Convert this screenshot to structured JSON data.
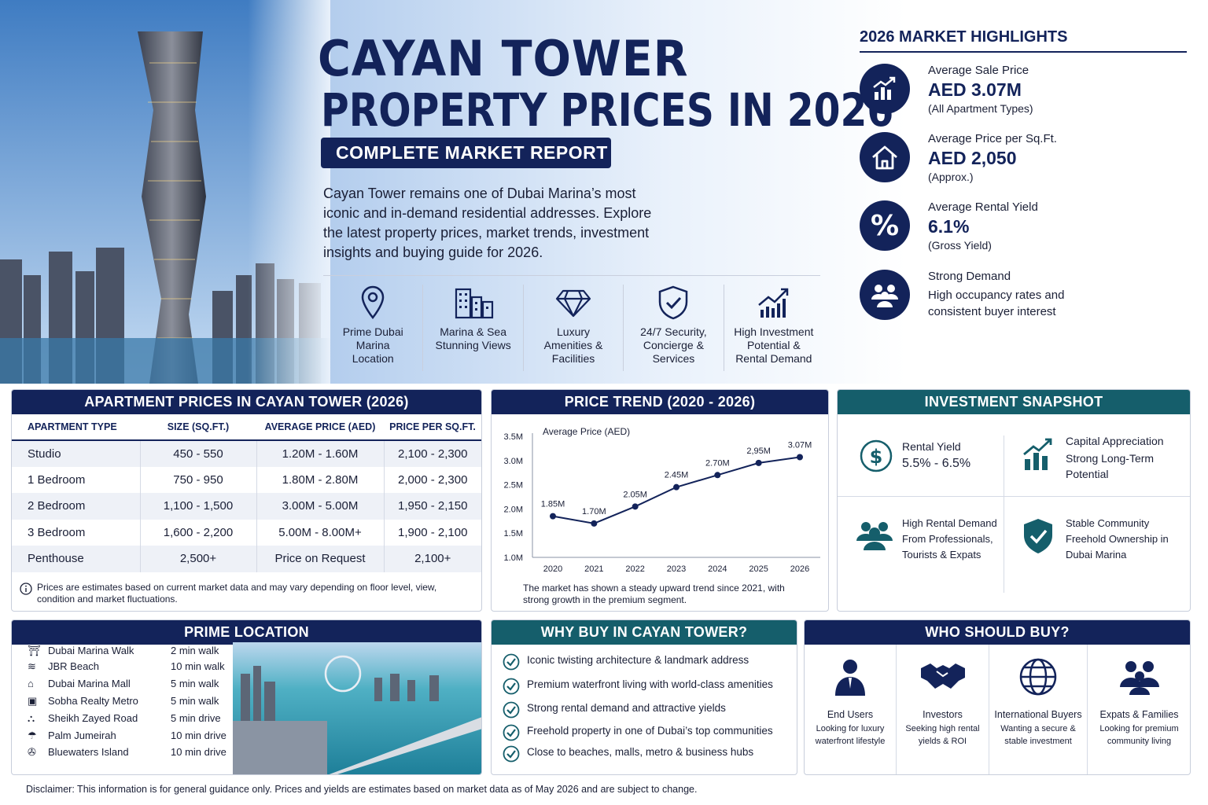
{
  "header": {
    "title_line1": "CAYAN TOWER",
    "title_line2": "PROPERTY PRICES IN 2026",
    "subtitle": "COMPLETE MARKET REPORT",
    "intro": "Cayan Tower remains one of Dubai Marina’s most iconic and in-demand residential addresses. Explore the latest property prices, market trends, investment insights and buying guide for 2026."
  },
  "features": [
    {
      "label": "Prime Dubai Marina Location",
      "icon": "location-pin-icon"
    },
    {
      "label": "Marina & Sea Stunning Views",
      "icon": "buildings-icon"
    },
    {
      "label": "Luxury Amenities & Facilities",
      "icon": "diamond-icon"
    },
    {
      "label": "24/7 Security, Concierge & Services",
      "icon": "shield-check-icon"
    },
    {
      "label": "High Investment Potential & Rental Demand",
      "icon": "growth-chart-icon"
    }
  ],
  "highlights": {
    "title": "2026 MARKET HIGHLIGHTS",
    "items": [
      {
        "label": "Average Sale Price",
        "value": "AED 3.07M",
        "note": "(All Apartment Types)",
        "icon": "chart-up-icon"
      },
      {
        "label": "Average Price per Sq.Ft.",
        "value": "AED 2,050",
        "note": "(Approx.)",
        "icon": "house-icon"
      },
      {
        "label": "Average Rental Yield",
        "value": "6.1%",
        "note": "(Gross Yield)",
        "icon": "percent-icon"
      },
      {
        "label": "Strong Demand",
        "value": "",
        "note": "High occupancy rates and consistent buyer interest",
        "icon": "people-icon"
      }
    ]
  },
  "prices": {
    "title": "APARTMENT PRICES IN CAYAN TOWER (2026)",
    "headers": [
      "APARTMENT TYPE",
      "SIZE (SQ.FT.)",
      "AVERAGE PRICE (AED)",
      "PRICE PER SQ.FT."
    ],
    "rows": [
      [
        "Studio",
        "450 - 550",
        "1.20M - 1.60M",
        "2,100 - 2,300"
      ],
      [
        "1 Bedroom",
        "750 - 950",
        "1.80M - 2.80M",
        "2,000 - 2,300"
      ],
      [
        "2 Bedroom",
        "1,100 - 1,500",
        "3.00M - 5.00M",
        "1,950 - 2,150"
      ],
      [
        "3 Bedroom",
        "1,600 - 2,200",
        "5.00M - 8.00M+",
        "1,900 - 2,100"
      ],
      [
        "Penthouse",
        "2,500+",
        "Price on Request",
        "2,100+"
      ]
    ],
    "note": "Prices are estimates based on current market data and may vary depending on floor level, view, condition and market fluctuations."
  },
  "trend": {
    "title": "PRICE TREND (2020 - 2026)",
    "note": "The market has shown a steady upward trend since 2021, with strong growth in the premium segment."
  },
  "chart_data": {
    "type": "line",
    "title": "",
    "ylabel": "Average Price (AED)",
    "xlabel": "",
    "x": [
      "2020",
      "2021",
      "2022",
      "2023",
      "2024",
      "2025",
      "2026"
    ],
    "y_ticks": [
      "1.0M",
      "1.5M",
      "2.0M",
      "2.5M",
      "3.0M",
      "3.5M"
    ],
    "ylim": [
      1.0,
      3.5
    ],
    "series": [
      {
        "values": [
          1.85,
          1.7,
          2.05,
          2.45,
          2.7,
          2.95,
          3.07
        ],
        "labels": [
          "1.85M",
          "1.70M",
          "2.05M",
          "2.45M",
          "2.70M",
          "2,95M",
          "3.07M"
        ]
      }
    ],
    "grid": false,
    "color": "#13235a"
  },
  "snapshot": {
    "title": "INVESTMENT SNAPSHOT",
    "items": [
      {
        "line1": "Rental Yield",
        "line2": "5.5% - 6.5%",
        "icon": "dollar-icon"
      },
      {
        "line1": "Capital Appreciation",
        "line2": "Strong Long-Term Potential",
        "icon": "bar-growth-icon"
      },
      {
        "line1": "High Rental Demand",
        "line2": "From Professionals, Tourists & Expats",
        "icon": "group-icon"
      },
      {
        "line1": "Stable Community",
        "line2": "Freehold Ownership in Dubai Marina",
        "icon": "shield-icon"
      }
    ]
  },
  "location": {
    "title": "PRIME LOCATION",
    "items": [
      {
        "name": "Dubai Marina Walk",
        "dist": "2 min walk"
      },
      {
        "name": "JBR Beach",
        "dist": "10 min walk"
      },
      {
        "name": "Dubai Marina Mall",
        "dist": "5 min walk"
      },
      {
        "name": "Sobha Realty Metro",
        "dist": "5 min walk"
      },
      {
        "name": "Sheikh Zayed Road",
        "dist": "5 min drive"
      },
      {
        "name": "Palm Jumeirah",
        "dist": "10 min drive"
      },
      {
        "name": "Bluewaters Island",
        "dist": "10 min drive"
      }
    ]
  },
  "why": {
    "title": "WHY BUY IN CAYAN TOWER?",
    "items": [
      "Iconic twisting architecture & landmark address",
      "Premium waterfront living with world-class amenities",
      "Strong rental demand and attractive yields",
      "Freehold property in one of Dubai’s top communities",
      "Close to beaches, malls, metro & business hubs"
    ]
  },
  "who": {
    "title": "WHO SHOULD BUY?",
    "items": [
      {
        "label": "End Users",
        "desc": "Looking for luxury waterfront lifestyle",
        "icon": "person-icon"
      },
      {
        "label": "Investors",
        "desc": "Seeking high rental yields & ROI",
        "icon": "handshake-icon"
      },
      {
        "label": "International Buyers",
        "desc": "Wanting a secure & stable investment",
        "icon": "globe-icon"
      },
      {
        "label": "Expats & Families",
        "desc": "Looking for premium community living",
        "icon": "family-icon"
      }
    ]
  },
  "disclaimer": "Disclaimer: This information is for general guidance only. Prices and yields are estimates based on market data as of May 2026 and are subject to change."
}
